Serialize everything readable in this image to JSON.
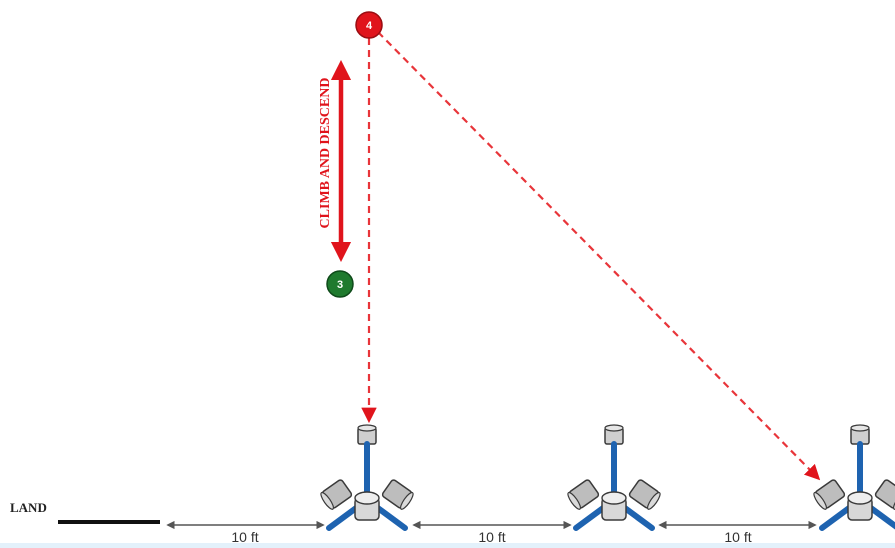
{
  "diagram": {
    "land_label": "LAND",
    "climb_label": "CLIMB AND DESCEND",
    "waypoints": [
      {
        "label": "4",
        "color": "#e0141c"
      },
      {
        "label": "3",
        "color": "#1f7a2e"
      }
    ],
    "distances": [
      "10 ft",
      "10 ft",
      "10 ft"
    ],
    "colors": {
      "accent_red": "#e0141c",
      "dashed_red": "#e8353a",
      "frame_blue": "#1e63b0",
      "motor_gray": "#c9c9c9",
      "outline": "#3a3a3a"
    },
    "icons": {
      "waypoint": "waypoint-marker-icon",
      "drone": "quadcopter-icon",
      "dimension": "double-arrow-icon"
    }
  }
}
